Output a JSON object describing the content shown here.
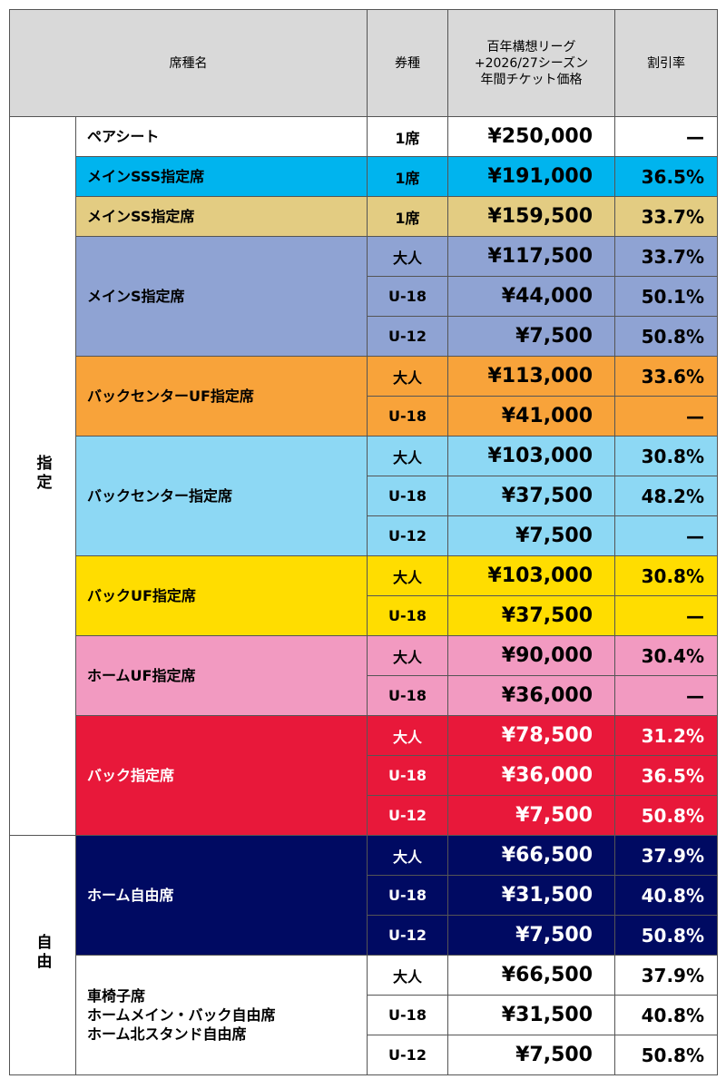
{
  "header": {
    "seat": "席種名",
    "ticket": "券種",
    "price_lines": [
      "百年構想リーグ",
      "+2026/27シーズン",
      "年間チケット価格"
    ],
    "discount": "割引率"
  },
  "groups": [
    {
      "label": "指定",
      "seats": [
        {
          "name_lines": [
            "ペアシート"
          ],
          "color": "#ffffff",
          "text_color": "#000000",
          "tickets": [
            {
              "type": "1席",
              "price": "¥250,000",
              "discount": "—"
            }
          ]
        },
        {
          "name_lines": [
            "メインSSS指定席"
          ],
          "color": "#00b4ee",
          "text_color": "#000000",
          "tickets": [
            {
              "type": "1席",
              "price": "¥191,000",
              "discount": "36.5%"
            }
          ]
        },
        {
          "name_lines": [
            "メインSS指定席"
          ],
          "color": "#e3cc82",
          "text_color": "#000000",
          "tickets": [
            {
              "type": "1席",
              "price": "¥159,500",
              "discount": "33.7%"
            }
          ]
        },
        {
          "name_lines": [
            "メインS指定席"
          ],
          "color": "#8fa3d3",
          "text_color": "#000000",
          "tickets": [
            {
              "type": "大人",
              "price": "¥117,500",
              "discount": "33.7%"
            },
            {
              "type": "U-18",
              "price": "¥44,000",
              "discount": "50.1%"
            },
            {
              "type": "U-12",
              "price": "¥7,500",
              "discount": "50.8%"
            }
          ]
        },
        {
          "name_lines": [
            "バックセンターUF指定席"
          ],
          "color": "#f8a33a",
          "text_color": "#000000",
          "tickets": [
            {
              "type": "大人",
              "price": "¥113,000",
              "discount": "33.6%"
            },
            {
              "type": "U-18",
              "price": "¥41,000",
              "discount": "—"
            }
          ]
        },
        {
          "name_lines": [
            "バックセンター指定席"
          ],
          "color": "#8dd8f4",
          "text_color": "#000000",
          "tickets": [
            {
              "type": "大人",
              "price": "¥103,000",
              "discount": "30.8%"
            },
            {
              "type": "U-18",
              "price": "¥37,500",
              "discount": "48.2%"
            },
            {
              "type": "U-12",
              "price": "¥7,500",
              "discount": "—"
            }
          ]
        },
        {
          "name_lines": [
            "バックUF指定席"
          ],
          "color": "#ffdd00",
          "text_color": "#000000",
          "tickets": [
            {
              "type": "大人",
              "price": "¥103,000",
              "discount": "30.8%"
            },
            {
              "type": "U-18",
              "price": "¥37,500",
              "discount": "—"
            }
          ]
        },
        {
          "name_lines": [
            "ホームUF指定席"
          ],
          "color": "#f29ac1",
          "text_color": "#000000",
          "tickets": [
            {
              "type": "大人",
              "price": "¥90,000",
              "discount": "30.4%"
            },
            {
              "type": "U-18",
              "price": "¥36,000",
              "discount": "—"
            }
          ]
        },
        {
          "name_lines": [
            "バック指定席"
          ],
          "color": "#e8183a",
          "text_color": "#ffffff",
          "tickets": [
            {
              "type": "大人",
              "price": "¥78,500",
              "discount": "31.2%"
            },
            {
              "type": "U-18",
              "price": "¥36,000",
              "discount": "36.5%"
            },
            {
              "type": "U-12",
              "price": "¥7,500",
              "discount": "50.8%"
            }
          ]
        }
      ]
    },
    {
      "label": "自由",
      "seats": [
        {
          "name_lines": [
            "ホーム自由席"
          ],
          "color": "#000a62",
          "text_color": "#ffffff",
          "tickets": [
            {
              "type": "大人",
              "price": "¥66,500",
              "discount": "37.9%"
            },
            {
              "type": "U-18",
              "price": "¥31,500",
              "discount": "40.8%"
            },
            {
              "type": "U-12",
              "price": "¥7,500",
              "discount": "50.8%"
            }
          ]
        },
        {
          "name_lines": [
            "車椅子席",
            "ホームメイン・バック自由席",
            "ホーム北スタンド自由席"
          ],
          "color": "#ffffff",
          "text_color": "#000000",
          "tickets": [
            {
              "type": "大人",
              "price": "¥66,500",
              "discount": "37.9%"
            },
            {
              "type": "U-18",
              "price": "¥31,500",
              "discount": "40.8%"
            },
            {
              "type": "U-12",
              "price": "¥7,500",
              "discount": "50.8%"
            }
          ]
        }
      ]
    }
  ]
}
